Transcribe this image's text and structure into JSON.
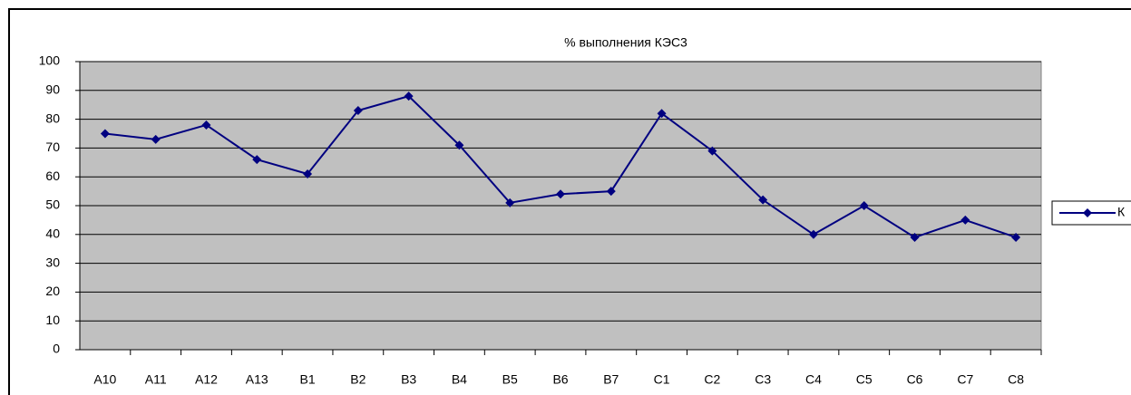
{
  "chart_data": {
    "type": "line",
    "title": "% выполнения КЭС3",
    "categories": [
      "A10",
      "A11",
      "A12",
      "A13",
      "B1",
      "B2",
      "B3",
      "B4",
      "B5",
      "B6",
      "B7",
      "C1",
      "C2",
      "C3",
      "C4",
      "C5",
      "C6",
      "C7",
      "C8"
    ],
    "series": [
      {
        "name": "К",
        "color": "#000080",
        "values": [
          75,
          73,
          78,
          66,
          61,
          83,
          88,
          71,
          51,
          54,
          55,
          82,
          69,
          52,
          40,
          50,
          39,
          45,
          39
        ]
      }
    ],
    "ylim": [
      0,
      100
    ],
    "yticks": [
      0,
      10,
      20,
      30,
      40,
      50,
      60,
      70,
      80,
      90,
      100
    ],
    "grid": true,
    "legend": "right"
  }
}
